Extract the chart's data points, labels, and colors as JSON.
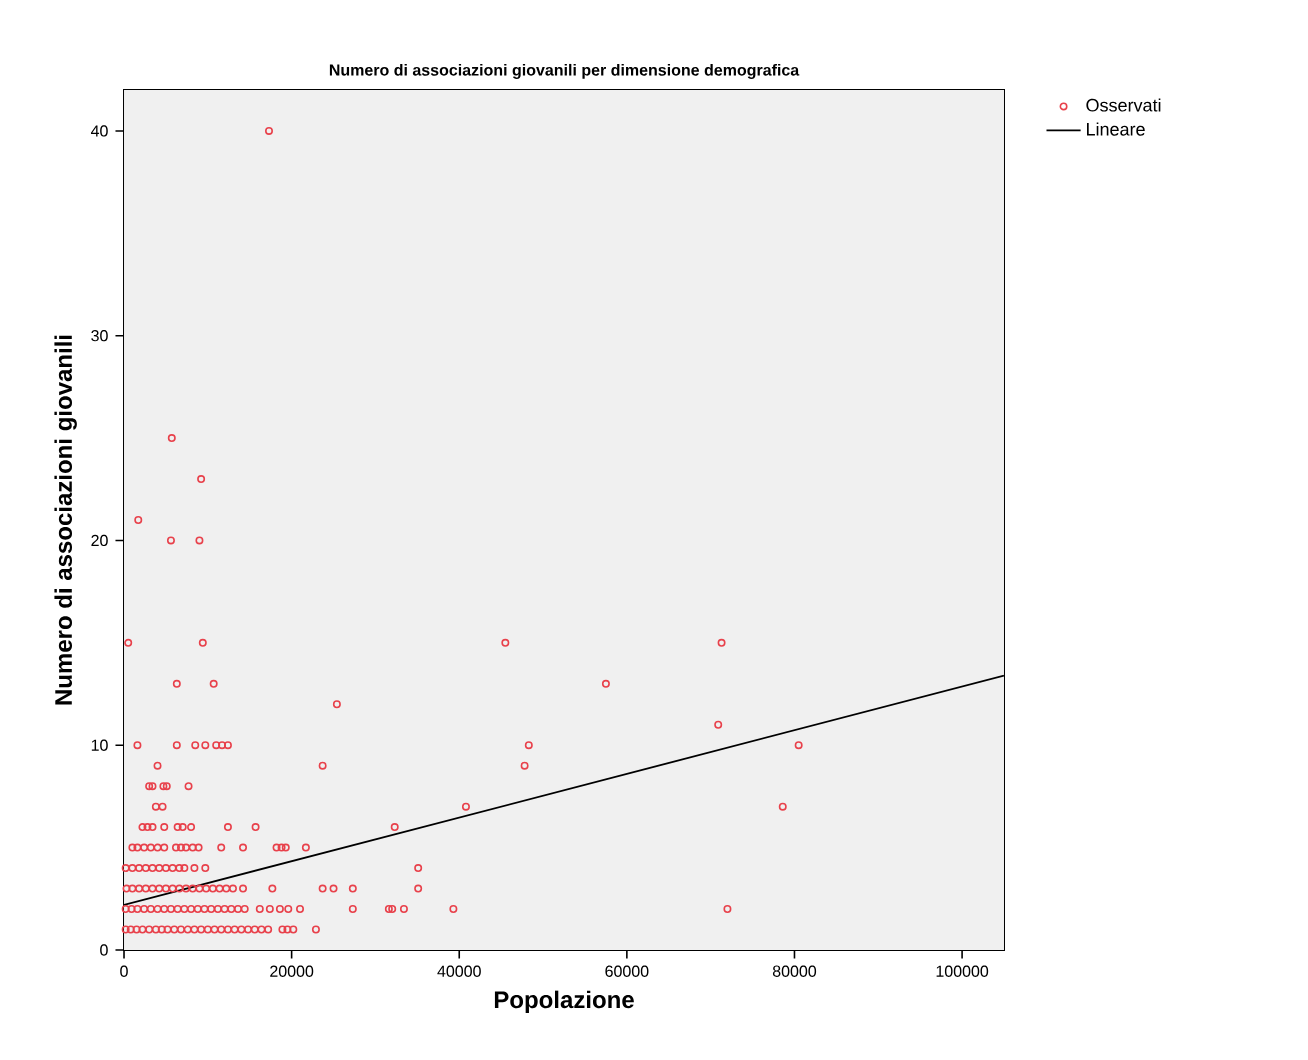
{
  "chart_data": {
    "type": "scatter",
    "title": "Numero di associazioni giovanili per dimensione demografica",
    "xlabel": "Popolazione",
    "ylabel": "Numero di associazioni giovanili",
    "xlim": [
      0,
      105000
    ],
    "ylim": [
      0,
      42
    ],
    "xticks": [
      0,
      20000,
      40000,
      60000,
      80000,
      100000
    ],
    "yticks": [
      0,
      10,
      20,
      30,
      40
    ],
    "legend": "top right",
    "marker": "circle",
    "series": [
      {
        "name": "Osservati",
        "color": "#e8414b",
        "x": [
          17300,
          5700,
          9200,
          1700,
          5600,
          9000,
          500,
          9400,
          45500,
          71300,
          6300,
          10700,
          57500,
          25400,
          70900,
          1600,
          6300,
          8500,
          9700,
          11000,
          11700,
          12400,
          48300,
          80500,
          4000,
          23700,
          47800,
          3000,
          3400,
          4700,
          5100,
          7700,
          3800,
          4600,
          40800,
          78600,
          2200,
          2800,
          3400,
          4800,
          6400,
          7000,
          8000,
          12400,
          15700,
          32300,
          1000,
          1600,
          2400,
          3200,
          4000,
          4800,
          6200,
          6800,
          7400,
          8200,
          8900,
          11600,
          14200,
          18200,
          18800,
          19300,
          21700,
          200,
          1000,
          1800,
          2600,
          3400,
          4200,
          5000,
          5800,
          6600,
          7200,
          8400,
          9700,
          35100,
          300,
          1000,
          1800,
          2600,
          3400,
          4200,
          5000,
          5800,
          6600,
          7400,
          8200,
          9000,
          9800,
          10600,
          11400,
          12200,
          13000,
          14200,
          17700,
          23700,
          25000,
          27300,
          35100,
          200,
          900,
          1600,
          2400,
          3200,
          4000,
          4800,
          5600,
          6400,
          7200,
          8000,
          8800,
          9600,
          10400,
          11200,
          12000,
          12800,
          13600,
          14400,
          16200,
          17400,
          18600,
          19600,
          21000,
          27300,
          31600,
          32000,
          33400,
          39300,
          72000,
          200,
          800,
          1500,
          2200,
          3000,
          3800,
          4500,
          5200,
          6000,
          6800,
          7600,
          8400,
          9200,
          10000,
          10800,
          11600,
          12400,
          13200,
          14000,
          14800,
          15600,
          16400,
          17200,
          18900,
          19500,
          20200,
          22900
        ],
        "values": [
          40,
          25,
          23,
          21,
          20,
          20,
          15,
          15,
          15,
          15,
          13,
          13,
          13,
          12,
          11,
          10,
          10,
          10,
          10,
          10,
          10,
          10,
          10,
          10,
          9,
          9,
          9,
          8,
          8,
          8,
          8,
          8,
          7,
          7,
          7,
          7,
          6,
          6,
          6,
          6,
          6,
          6,
          6,
          6,
          6,
          6,
          5,
          5,
          5,
          5,
          5,
          5,
          5,
          5,
          5,
          5,
          5,
          5,
          5,
          5,
          5,
          5,
          5,
          4,
          4,
          4,
          4,
          4,
          4,
          4,
          4,
          4,
          4,
          4,
          4,
          4,
          3,
          3,
          3,
          3,
          3,
          3,
          3,
          3,
          3,
          3,
          3,
          3,
          3,
          3,
          3,
          3,
          3,
          3,
          3,
          3,
          3,
          3,
          3,
          2,
          2,
          2,
          2,
          2,
          2,
          2,
          2,
          2,
          2,
          2,
          2,
          2,
          2,
          2,
          2,
          2,
          2,
          2,
          2,
          2,
          2,
          2,
          2,
          2,
          2,
          2,
          2,
          2,
          2,
          1,
          1,
          1,
          1,
          1,
          1,
          1,
          1,
          1,
          1,
          1,
          1,
          1,
          1,
          1,
          1,
          1,
          1,
          1,
          1,
          1,
          1,
          1,
          1,
          1,
          1,
          1
        ]
      },
      {
        "name": "Lineare",
        "type": "line",
        "marker": "none",
        "color": "#000000",
        "x": [
          0,
          105000
        ],
        "values": [
          2.2,
          13.4
        ]
      }
    ]
  }
}
